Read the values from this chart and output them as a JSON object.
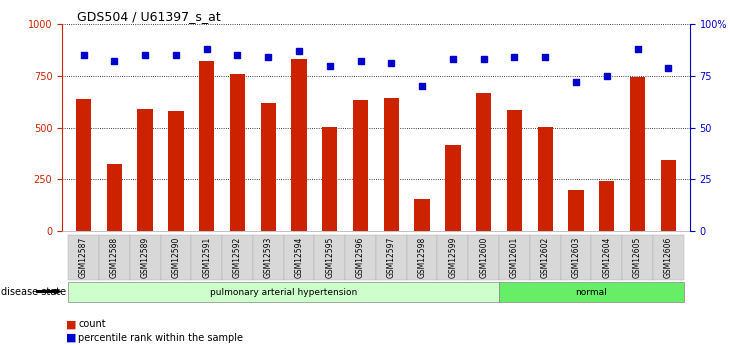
{
  "title": "GDS504 / U61397_s_at",
  "samples": [
    "GSM12587",
    "GSM12588",
    "GSM12589",
    "GSM12590",
    "GSM12591",
    "GSM12592",
    "GSM12593",
    "GSM12594",
    "GSM12595",
    "GSM12596",
    "GSM12597",
    "GSM12598",
    "GSM12599",
    "GSM12600",
    "GSM12601",
    "GSM12602",
    "GSM12603",
    "GSM12604",
    "GSM12605",
    "GSM12606"
  ],
  "counts": [
    640,
    325,
    590,
    580,
    820,
    760,
    620,
    830,
    505,
    635,
    645,
    155,
    415,
    665,
    585,
    505,
    200,
    240,
    745,
    345
  ],
  "percentiles": [
    85,
    82,
    85,
    85,
    88,
    85,
    84,
    87,
    80,
    82,
    81,
    70,
    83,
    83,
    84,
    84,
    72,
    75,
    88,
    79
  ],
  "bar_color": "#cc2200",
  "dot_color": "#0000cc",
  "ylim_left": [
    0,
    1000
  ],
  "ylim_right": [
    0,
    100
  ],
  "yticks_left": [
    0,
    250,
    500,
    750,
    1000
  ],
  "yticks_right": [
    0,
    25,
    50,
    75,
    100
  ],
  "disease_groups": [
    {
      "label": "pulmonary arterial hypertension",
      "start": 0,
      "end": 14,
      "color": "#ccffcc"
    },
    {
      "label": "normal",
      "start": 14,
      "end": 20,
      "color": "#66ee66"
    }
  ],
  "disease_state_label": "disease state",
  "legend_count_label": "count",
  "legend_pct_label": "percentile rank within the sample",
  "background_color": "#ffffff",
  "bar_width": 0.5
}
